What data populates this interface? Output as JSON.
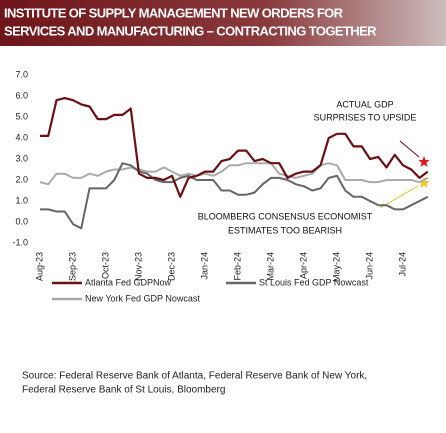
{
  "chart_data": {
    "type": "line",
    "title": [
      "INSTITUTE OF SUPPLY MANAGEMENT NEW ORDERS FOR",
      "SERVICES AND MANUFACTURING – CONTRACTING TOGETHER"
    ],
    "categories": [
      "Aug-23",
      null,
      null,
      null,
      "Sep-23",
      null,
      null,
      null,
      "Oct-23",
      null,
      null,
      null,
      "Nov-23",
      null,
      null,
      null,
      "Dec-23",
      null,
      null,
      null,
      "Jan-24",
      null,
      null,
      null,
      "Feb-24",
      null,
      null,
      null,
      "Mar-24",
      null,
      null,
      null,
      "Apr-24",
      null,
      null,
      null,
      "May-24",
      null,
      null,
      null,
      "Jun-24",
      null,
      null,
      null,
      "Jul-24",
      null,
      null,
      null
    ],
    "series": [
      {
        "name": "Atlanta Fed GDPNow",
        "color": "#6b1014",
        "values": [
          4.1,
          4.1,
          5.8,
          5.9,
          5.8,
          5.6,
          5.5,
          4.9,
          4.9,
          5.1,
          5.1,
          5.4,
          2.3,
          2.1,
          2.1,
          2.0,
          2.2,
          1.2,
          2.1,
          2.2,
          2.4,
          2.4,
          2.9,
          3.0,
          3.4,
          3.4,
          2.9,
          3.0,
          2.8,
          2.8,
          2.1,
          2.3,
          2.4,
          2.4,
          2.7,
          4.0,
          4.2,
          4.2,
          3.6,
          3.6,
          3.0,
          3.1,
          2.6,
          3.2,
          2.7,
          2.5,
          2.1,
          2.4
        ]
      },
      {
        "name": "St Louis Fed GDP Nowcast",
        "color": "#666666",
        "values": [
          0.6,
          0.6,
          0.5,
          0.5,
          -0.1,
          -0.3,
          1.6,
          1.6,
          1.6,
          2.0,
          2.8,
          2.7,
          2.4,
          2.3,
          2.0,
          1.9,
          1.9,
          2.1,
          2.2,
          2.0,
          2.0,
          2.0,
          1.5,
          1.5,
          1.3,
          1.3,
          1.4,
          1.8,
          2.1,
          2.1,
          2.0,
          1.8,
          1.7,
          1.5,
          1.6,
          2.1,
          2.2,
          1.5,
          1.2,
          1.2,
          1.0,
          0.8,
          0.8,
          0.6,
          0.6,
          0.8,
          1.0,
          1.2
        ]
      },
      {
        "name": "New York Fed GDP Nowcast",
        "color": "#aaaaaa",
        "values": [
          1.9,
          1.8,
          2.3,
          2.3,
          2.1,
          2.1,
          2.3,
          2.2,
          2.4,
          2.5,
          2.5,
          2.6,
          2.5,
          2.4,
          2.4,
          2.6,
          2.4,
          2.2,
          2.3,
          2.2,
          2.3,
          2.2,
          2.4,
          2.7,
          2.7,
          2.8,
          2.8,
          2.8,
          2.8,
          2.3,
          2.2,
          2.1,
          2.2,
          2.3,
          2.7,
          2.8,
          2.7,
          2.0,
          2.0,
          2.0,
          1.9,
          1.9,
          2.0,
          2.0,
          2.0,
          2.0,
          1.9,
          2.1
        ]
      }
    ],
    "ylim": [
      -1,
      7
    ],
    "yticks": [
      {
        "value": 7,
        "label": "7.0"
      },
      {
        "value": 6,
        "label": "6.0"
      },
      {
        "value": 5,
        "label": "5.0"
      },
      {
        "value": 4,
        "label": "4.0"
      },
      {
        "value": 3,
        "label": "3.0"
      },
      {
        "value": 2,
        "label": "2.0"
      },
      {
        "value": 1,
        "label": "1.0"
      },
      {
        "value": 0,
        "label": "0.0"
      },
      {
        "value": -1,
        "label": "-1.0"
      }
    ],
    "grid": false,
    "annotations": [
      [
        "ACTUAL GDP",
        "SURPRISES TO UPSIDE"
      ],
      [
        "BLOOMBERG CONSENSUS ECONOMIST",
        "ESTIMATES TOO BEARISH"
      ]
    ],
    "source": [
      "Source:  Federal Reserve Bank of Atlanta,  Federal Reserve Bank of New York,",
      "Federal Reserve Bank of St Louis,  Bloomberg"
    ]
  }
}
